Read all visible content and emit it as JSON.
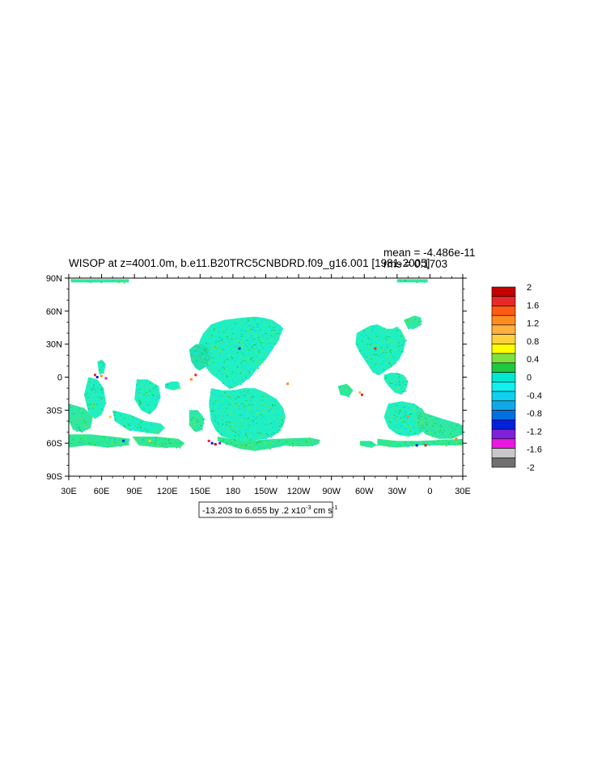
{
  "chart_data": {
    "type": "heatmap",
    "title": "WISOP at z=4001.0m, b.e11.B20TRC5CNBDRD.f09_g16.001 [1981-2005]",
    "stats": {
      "mean_label": "mean = -4.486e-11",
      "rms_label": "rms = 0.1703"
    },
    "x_tick_labels": [
      "30E",
      "60E",
      "90E",
      "120E",
      "150E",
      "180",
      "150W",
      "120W",
      "90W",
      "60W",
      "30W",
      "0",
      "30E"
    ],
    "x_tick_values": [
      30,
      60,
      90,
      120,
      150,
      180,
      210,
      240,
      270,
      300,
      330,
      360,
      390
    ],
    "y_tick_labels": [
      "90N",
      "60N",
      "30N",
      "0",
      "30S",
      "60S",
      "90S"
    ],
    "y_tick_values": [
      90,
      60,
      30,
      0,
      -30,
      -60,
      -90
    ],
    "xlim": [
      30,
      390
    ],
    "ylim": [
      -90,
      90
    ],
    "contour_info": {
      "prefix": "-13.203 to 6.655 by .2 x10",
      "exponent": "-3",
      "units": " cm s",
      "units_exponent": "-1"
    },
    "colorbar": {
      "labels": [
        "2",
        "1.6",
        "1.2",
        "0.8",
        "0.4",
        "0",
        "-0.4",
        "-0.8",
        "-1.2",
        "-1.6",
        "-2"
      ],
      "colors": [
        "#c40000",
        "#e82828",
        "#ff5a14",
        "#ff8c1e",
        "#ffb040",
        "#ffd040",
        "#ffff00",
        "#7fe040",
        "#20c840",
        "#00e8d0",
        "#10f0f0",
        "#10d0f0",
        "#10a8e8",
        "#0070e0",
        "#0020e0",
        "#8020d8",
        "#e818e0",
        "#c8c8c8",
        "#707070"
      ]
    },
    "regions": [
      {
        "name": "arctic-band-west",
        "lon": [
          32,
          85,
          85,
          32
        ],
        "lat": [
          89,
          89,
          86,
          86
        ],
        "color": "#30e8a0"
      },
      {
        "name": "arctic-band-east",
        "lon": [
          330,
          358,
          358,
          330
        ],
        "lat": [
          89,
          89,
          86,
          86
        ],
        "color": "#30e8a0"
      },
      {
        "name": "north-pacific",
        "lon": [
          153,
          160,
          172,
          188,
          200,
          208,
          216,
          222,
          226,
          224,
          222,
          218,
          214,
          210,
          204,
          200,
          196,
          192,
          188,
          184,
          180,
          176,
          172,
          168,
          164,
          160,
          156,
          153,
          150,
          148,
          150,
          153
        ],
        "lat": [
          40,
          48,
          52,
          54,
          55,
          54,
          52,
          48,
          44,
          40,
          34,
          28,
          22,
          16,
          10,
          5,
          0,
          -3,
          -6,
          -8,
          -10,
          -10,
          -7,
          -3,
          0,
          3,
          8,
          14,
          22,
          28,
          34,
          40
        ],
        "color": "#20f0c0"
      },
      {
        "name": "north-pacific-west-lobe",
        "lon": [
          140,
          146,
          152,
          158,
          160,
          156,
          150,
          146,
          142,
          140
        ],
        "lat": [
          25,
          30,
          30,
          26,
          18,
          10,
          6,
          8,
          14,
          25
        ],
        "color": "#20e0b0"
      },
      {
        "name": "south-pacific",
        "lon": [
          160,
          170,
          180,
          190,
          200,
          210,
          220,
          226,
          228,
          226,
          222,
          216,
          210,
          202,
          194,
          186,
          178,
          170,
          164,
          160,
          158,
          160
        ],
        "lat": [
          -10,
          -12,
          -12,
          -10,
          -10,
          -14,
          -20,
          -28,
          -36,
          -44,
          -50,
          -54,
          -56,
          -57,
          -58,
          -58,
          -56,
          -54,
          -48,
          -40,
          -24,
          -10
        ],
        "color": "#20f0c0"
      },
      {
        "name": "southern-ocean-pacific",
        "lon": [
          166,
          190,
          220,
          250,
          260,
          258,
          250,
          240,
          228,
          214,
          200,
          186,
          174,
          166,
          166
        ],
        "lat": [
          -54,
          -58,
          -56,
          -55,
          -57,
          -61,
          -63,
          -63,
          -62,
          -65,
          -67,
          -65,
          -61,
          -58,
          -54
        ],
        "color": "#30e890"
      },
      {
        "name": "north-atlantic",
        "lon": [
          293,
          300,
          306,
          312,
          316,
          320,
          326,
          330,
          334,
          338,
          336,
          332,
          326,
          320,
          314,
          308,
          304,
          300,
          296,
          292,
          293
        ],
        "lat": [
          40,
          44,
          47,
          48,
          46,
          44,
          44,
          46,
          42,
          34,
          24,
          16,
          10,
          6,
          2,
          4,
          10,
          16,
          22,
          30,
          40
        ],
        "color": "#20f0c0"
      },
      {
        "name": "tropical-atlantic",
        "lon": [
          318,
          324,
          330,
          336,
          340,
          338,
          334,
          328,
          322,
          318,
          318
        ],
        "lat": [
          2,
          4,
          4,
          2,
          -4,
          -12,
          -16,
          -14,
          -8,
          -2,
          2
        ],
        "color": "#20f0c0"
      },
      {
        "name": "norwegian-sea",
        "lon": [
          336,
          346,
          352,
          352,
          346,
          340,
          336
        ],
        "lat": [
          52,
          56,
          54,
          48,
          44,
          44,
          52
        ],
        "color": "#30e8a0"
      },
      {
        "name": "south-atlantic",
        "lon": [
          322,
          334,
          346,
          354,
          358,
          356,
          350,
          340,
          330,
          322,
          318,
          322
        ],
        "lat": [
          -24,
          -22,
          -24,
          -30,
          -40,
          -48,
          -52,
          -54,
          -52,
          -46,
          -36,
          -24
        ],
        "color": "#20f0c0"
      },
      {
        "name": "south-atlantic-east",
        "lon": [
          348,
          360,
          372,
          386,
          390,
          390,
          380,
          368,
          356,
          348,
          348
        ],
        "lat": [
          -30,
          -34,
          -38,
          -42,
          -44,
          -52,
          -56,
          -56,
          -52,
          -44,
          -30
        ],
        "color": "#30e8a0"
      },
      {
        "name": "southern-ocean-atlantic",
        "lon": [
          312,
          330,
          350,
          370,
          390,
          390,
          370,
          350,
          330,
          312,
          312
        ],
        "lat": [
          -56,
          -58,
          -58,
          -57,
          -56,
          -62,
          -62,
          -62,
          -64,
          -62,
          -56
        ],
        "color": "#30e890"
      },
      {
        "name": "weddell-rim",
        "lon": [
          296,
          306,
          312,
          306,
          296,
          296
        ],
        "lat": [
          -58,
          -58,
          -62,
          -64,
          -62,
          -58
        ],
        "color": "#30e890"
      },
      {
        "name": "southeast-pacific-patch",
        "lon": [
          276,
          284,
          290,
          286,
          278,
          276
        ],
        "lat": [
          -8,
          -6,
          -12,
          -18,
          -16,
          -8
        ],
        "color": "#30e890"
      },
      {
        "name": "indian-east",
        "lon": [
          92,
          102,
          112,
          114,
          110,
          104,
          96,
          90,
          92
        ],
        "lat": [
          -2,
          -2,
          -8,
          -18,
          -28,
          -34,
          -30,
          -20,
          -2
        ],
        "color": "#20f0c0"
      },
      {
        "name": "indian-west",
        "lon": [
          48,
          56,
          62,
          64,
          60,
          54,
          48,
          44,
          48
        ],
        "lat": [
          0,
          -2,
          -10,
          -24,
          -34,
          -38,
          -32,
          -16,
          0
        ],
        "color": "#20f0c0"
      },
      {
        "name": "indian-southwest",
        "lon": [
          30,
          44,
          52,
          50,
          42,
          34,
          30,
          30
        ],
        "lat": [
          -24,
          -28,
          -36,
          -46,
          -50,
          -48,
          -40,
          -24
        ],
        "color": "#30e8a0"
      },
      {
        "name": "indian-south",
        "lon": [
          70,
          86,
          100,
          114,
          118,
          112,
          98,
          84,
          72,
          70
        ],
        "lat": [
          -30,
          -34,
          -40,
          -42,
          -46,
          -52,
          -50,
          -48,
          -40,
          -30
        ],
        "color": "#20f0c0"
      },
      {
        "name": "tasman",
        "lon": [
          140,
          148,
          154,
          152,
          146,
          140,
          140
        ],
        "lat": [
          -30,
          -30,
          -38,
          -48,
          -50,
          -44,
          -30
        ],
        "color": "#30e8a0"
      },
      {
        "name": "southern-ocean-indian",
        "lon": [
          30,
          50,
          70,
          86,
          84,
          66,
          46,
          30,
          30
        ],
        "lat": [
          -52,
          -52,
          -54,
          -56,
          -62,
          -64,
          -62,
          -64,
          -52
        ],
        "color": "#30e890"
      },
      {
        "name": "southern-ocean-australia",
        "lon": [
          88,
          110,
          130,
          136,
          132,
          112,
          94,
          88
        ],
        "lat": [
          -54,
          -54,
          -56,
          -60,
          -64,
          -64,
          -62,
          -54
        ],
        "color": "#30e890"
      },
      {
        "name": "arabian-sea",
        "lon": [
          56,
          60,
          64,
          62,
          58,
          56
        ],
        "lat": [
          14,
          16,
          12,
          4,
          2,
          14
        ],
        "color": "#20f0c0"
      },
      {
        "name": "indonesia-strip",
        "lon": [
          118,
          124,
          130,
          132,
          126,
          118,
          118
        ],
        "lat": [
          -6,
          -4,
          -4,
          -10,
          -12,
          -10,
          -6
        ],
        "color": "#20f0c0"
      }
    ],
    "anomalies": [
      {
        "lon": 54,
        "lat": 2,
        "color": "#e82828"
      },
      {
        "lon": 56,
        "lat": 0,
        "color": "#0020e0"
      },
      {
        "lon": 60,
        "lat": 1,
        "color": "#ff8c1e"
      },
      {
        "lon": 64,
        "lat": -1,
        "color": "#e818e0"
      },
      {
        "lon": 158,
        "lat": -58,
        "color": "#e82828"
      },
      {
        "lon": 161,
        "lat": -60,
        "color": "#0020e0"
      },
      {
        "lon": 164,
        "lat": -61,
        "color": "#c40000"
      },
      {
        "lon": 168,
        "lat": -60,
        "color": "#8020d8"
      },
      {
        "lon": 296,
        "lat": -14,
        "color": "#ffb040"
      },
      {
        "lon": 298,
        "lat": -16,
        "color": "#e82828"
      },
      {
        "lon": 340,
        "lat": -36,
        "color": "#ff8c1e"
      },
      {
        "lon": 348,
        "lat": -62,
        "color": "#0020e0"
      },
      {
        "lon": 356,
        "lat": -62,
        "color": "#e82828"
      },
      {
        "lon": 384,
        "lat": -56,
        "color": "#ff8c1e"
      },
      {
        "lon": 104,
        "lat": -58,
        "color": "#ffd040"
      },
      {
        "lon": 142,
        "lat": -2,
        "color": "#ff8c1e"
      },
      {
        "lon": 146,
        "lat": 2,
        "color": "#e82828"
      },
      {
        "lon": 186,
        "lat": 26,
        "color": "#0020e0"
      },
      {
        "lon": 310,
        "lat": 26,
        "color": "#e82828"
      },
      {
        "lon": 80,
        "lat": -58,
        "color": "#0020e0"
      },
      {
        "lon": 68,
        "lat": -36,
        "color": "#ffd040"
      },
      {
        "lon": 230,
        "lat": -6,
        "color": "#ff8c1e"
      }
    ]
  }
}
